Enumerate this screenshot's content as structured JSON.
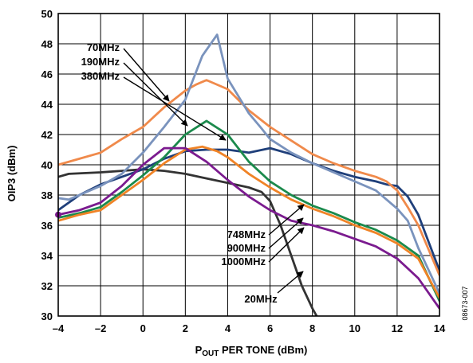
{
  "chart_data": {
    "type": "line",
    "xlabel_main": "P",
    "xlabel_sub": "OUT",
    "xlabel_rest": " PER TONE (dBm)",
    "ylabel": "OIP3 (dBm)",
    "xlim": [
      -4,
      14
    ],
    "ylim": [
      30,
      50
    ],
    "xticks": [
      "–4",
      "–2",
      "0",
      "2",
      "4",
      "6",
      "8",
      "10",
      "12",
      "14"
    ],
    "xtick_values": [
      -4,
      -2,
      0,
      2,
      4,
      6,
      8,
      10,
      12,
      14
    ],
    "yticks": [
      "30",
      "32",
      "34",
      "36",
      "38",
      "40",
      "42",
      "44",
      "46",
      "48",
      "50"
    ],
    "ytick_values": [
      30,
      32,
      34,
      36,
      38,
      40,
      42,
      44,
      46,
      48,
      50
    ],
    "grid": true,
    "figure_id": "08673-007",
    "annotations": [
      {
        "text": "70MHz"
      },
      {
        "text": "190MHz"
      },
      {
        "text": "380MHz"
      },
      {
        "text": "748MHz"
      },
      {
        "text": "900MHz"
      },
      {
        "text": "1000MHz"
      },
      {
        "text": "20MHz"
      }
    ],
    "series": [
      {
        "name": "20MHz",
        "color": "#333333",
        "points": [
          [
            -4,
            39.2
          ],
          [
            -3.5,
            39.4
          ],
          [
            -2,
            39.5
          ],
          [
            -1,
            39.6
          ],
          [
            0,
            39.7
          ],
          [
            1,
            39.6
          ],
          [
            2,
            39.4
          ],
          [
            3,
            39.1
          ],
          [
            4,
            38.8
          ],
          [
            5,
            38.5
          ],
          [
            5.6,
            38.2
          ],
          [
            6,
            37.6
          ],
          [
            6.5,
            36.0
          ],
          [
            7,
            34.0
          ],
          [
            7.5,
            32.0
          ],
          [
            8,
            30.5
          ],
          [
            8.4,
            29.5
          ]
        ]
      },
      {
        "name": "70MHz",
        "color": "#1f3f7a",
        "points": [
          [
            -4,
            37.0
          ],
          [
            -3,
            38.0
          ],
          [
            -2,
            38.7
          ],
          [
            -1,
            39.2
          ],
          [
            0,
            39.7
          ],
          [
            1,
            40.4
          ],
          [
            2,
            40.9
          ],
          [
            3,
            41.0
          ],
          [
            4,
            41.0
          ],
          [
            5,
            40.8
          ],
          [
            6,
            41.1
          ],
          [
            7,
            40.7
          ],
          [
            8,
            40.1
          ],
          [
            9,
            39.6
          ],
          [
            10,
            39.2
          ],
          [
            11,
            38.9
          ],
          [
            11.5,
            38.7
          ],
          [
            12,
            38.6
          ],
          [
            12.5,
            37.9
          ],
          [
            13,
            36.7
          ],
          [
            14,
            33.0
          ]
        ]
      },
      {
        "name": "190MHz",
        "color": "#f08a4b",
        "points": [
          [
            -4,
            40.0
          ],
          [
            -3,
            40.4
          ],
          [
            -2,
            40.8
          ],
          [
            -1,
            41.7
          ],
          [
            0,
            42.5
          ],
          [
            1,
            43.8
          ],
          [
            2,
            44.9
          ],
          [
            2.5,
            45.3
          ],
          [
            3,
            45.6
          ],
          [
            4,
            45.0
          ],
          [
            5,
            43.6
          ],
          [
            6,
            42.5
          ],
          [
            7,
            41.6
          ],
          [
            8,
            40.7
          ],
          [
            9,
            40.1
          ],
          [
            10,
            39.6
          ],
          [
            11,
            39.2
          ],
          [
            11.5,
            38.9
          ],
          [
            12,
            38.3
          ],
          [
            12.5,
            37.2
          ],
          [
            13,
            36.0
          ],
          [
            14,
            32.7
          ]
        ]
      },
      {
        "name": "380MHz",
        "color": "#7a93bd",
        "points": [
          [
            -4,
            37.8
          ],
          [
            -3.5,
            37.7
          ],
          [
            -2,
            38.6
          ],
          [
            -1,
            39.4
          ],
          [
            0,
            40.8
          ],
          [
            1,
            42.5
          ],
          [
            2,
            44.3
          ],
          [
            2.8,
            47.2
          ],
          [
            3.5,
            48.6
          ],
          [
            4,
            45.7
          ],
          [
            5,
            43.4
          ],
          [
            5.6,
            42.4
          ],
          [
            6,
            41.7
          ],
          [
            7,
            40.8
          ],
          [
            8,
            40.1
          ],
          [
            9,
            39.5
          ],
          [
            10,
            38.9
          ],
          [
            11,
            38.3
          ],
          [
            11.5,
            37.7
          ],
          [
            12,
            37.1
          ],
          [
            12.5,
            36.3
          ],
          [
            13,
            34.5
          ],
          [
            14,
            31.5
          ]
        ]
      },
      {
        "name": "748MHz",
        "color": "#1b8a4c",
        "points": [
          [
            -4,
            36.5
          ],
          [
            -3,
            36.8
          ],
          [
            -2,
            37.2
          ],
          [
            -1,
            38.2
          ],
          [
            0,
            39.3
          ],
          [
            1,
            40.5
          ],
          [
            2,
            42.0
          ],
          [
            3,
            42.9
          ],
          [
            4,
            42.0
          ],
          [
            5,
            40.2
          ],
          [
            6,
            38.9
          ],
          [
            7,
            38.0
          ],
          [
            8,
            37.3
          ],
          [
            9,
            36.8
          ],
          [
            10,
            36.2
          ],
          [
            11,
            35.7
          ],
          [
            12,
            35.0
          ],
          [
            13,
            34.0
          ],
          [
            14,
            31.0
          ]
        ]
      },
      {
        "name": "900MHz",
        "color": "#f08326",
        "points": [
          [
            -4,
            36.3
          ],
          [
            -3,
            36.7
          ],
          [
            -2,
            37.0
          ],
          [
            -1,
            38.0
          ],
          [
            0,
            39.0
          ],
          [
            1,
            40.1
          ],
          [
            2,
            41.0
          ],
          [
            2.8,
            41.2
          ],
          [
            3.5,
            40.9
          ],
          [
            4,
            40.5
          ],
          [
            5,
            39.4
          ],
          [
            6,
            38.5
          ],
          [
            7,
            37.7
          ],
          [
            8,
            37.1
          ],
          [
            9,
            36.6
          ],
          [
            10,
            36.0
          ],
          [
            11,
            35.5
          ],
          [
            12,
            34.8
          ],
          [
            13,
            33.8
          ],
          [
            14,
            31.2
          ]
        ]
      },
      {
        "name": "1000MHz",
        "color": "#7b1b8f",
        "points": [
          [
            -4,
            36.7
          ],
          [
            -3,
            37.0
          ],
          [
            -2,
            37.5
          ],
          [
            -1,
            38.6
          ],
          [
            0,
            40.0
          ],
          [
            1,
            41.1
          ],
          [
            2,
            41.1
          ],
          [
            3,
            40.2
          ],
          [
            4,
            39.0
          ],
          [
            5,
            37.9
          ],
          [
            6,
            37.0
          ],
          [
            7,
            36.3
          ],
          [
            8,
            36.0
          ],
          [
            9,
            35.6
          ],
          [
            10,
            35.1
          ],
          [
            11,
            34.6
          ],
          [
            12,
            33.8
          ],
          [
            13,
            32.5
          ],
          [
            14,
            30.5
          ]
        ]
      }
    ]
  }
}
